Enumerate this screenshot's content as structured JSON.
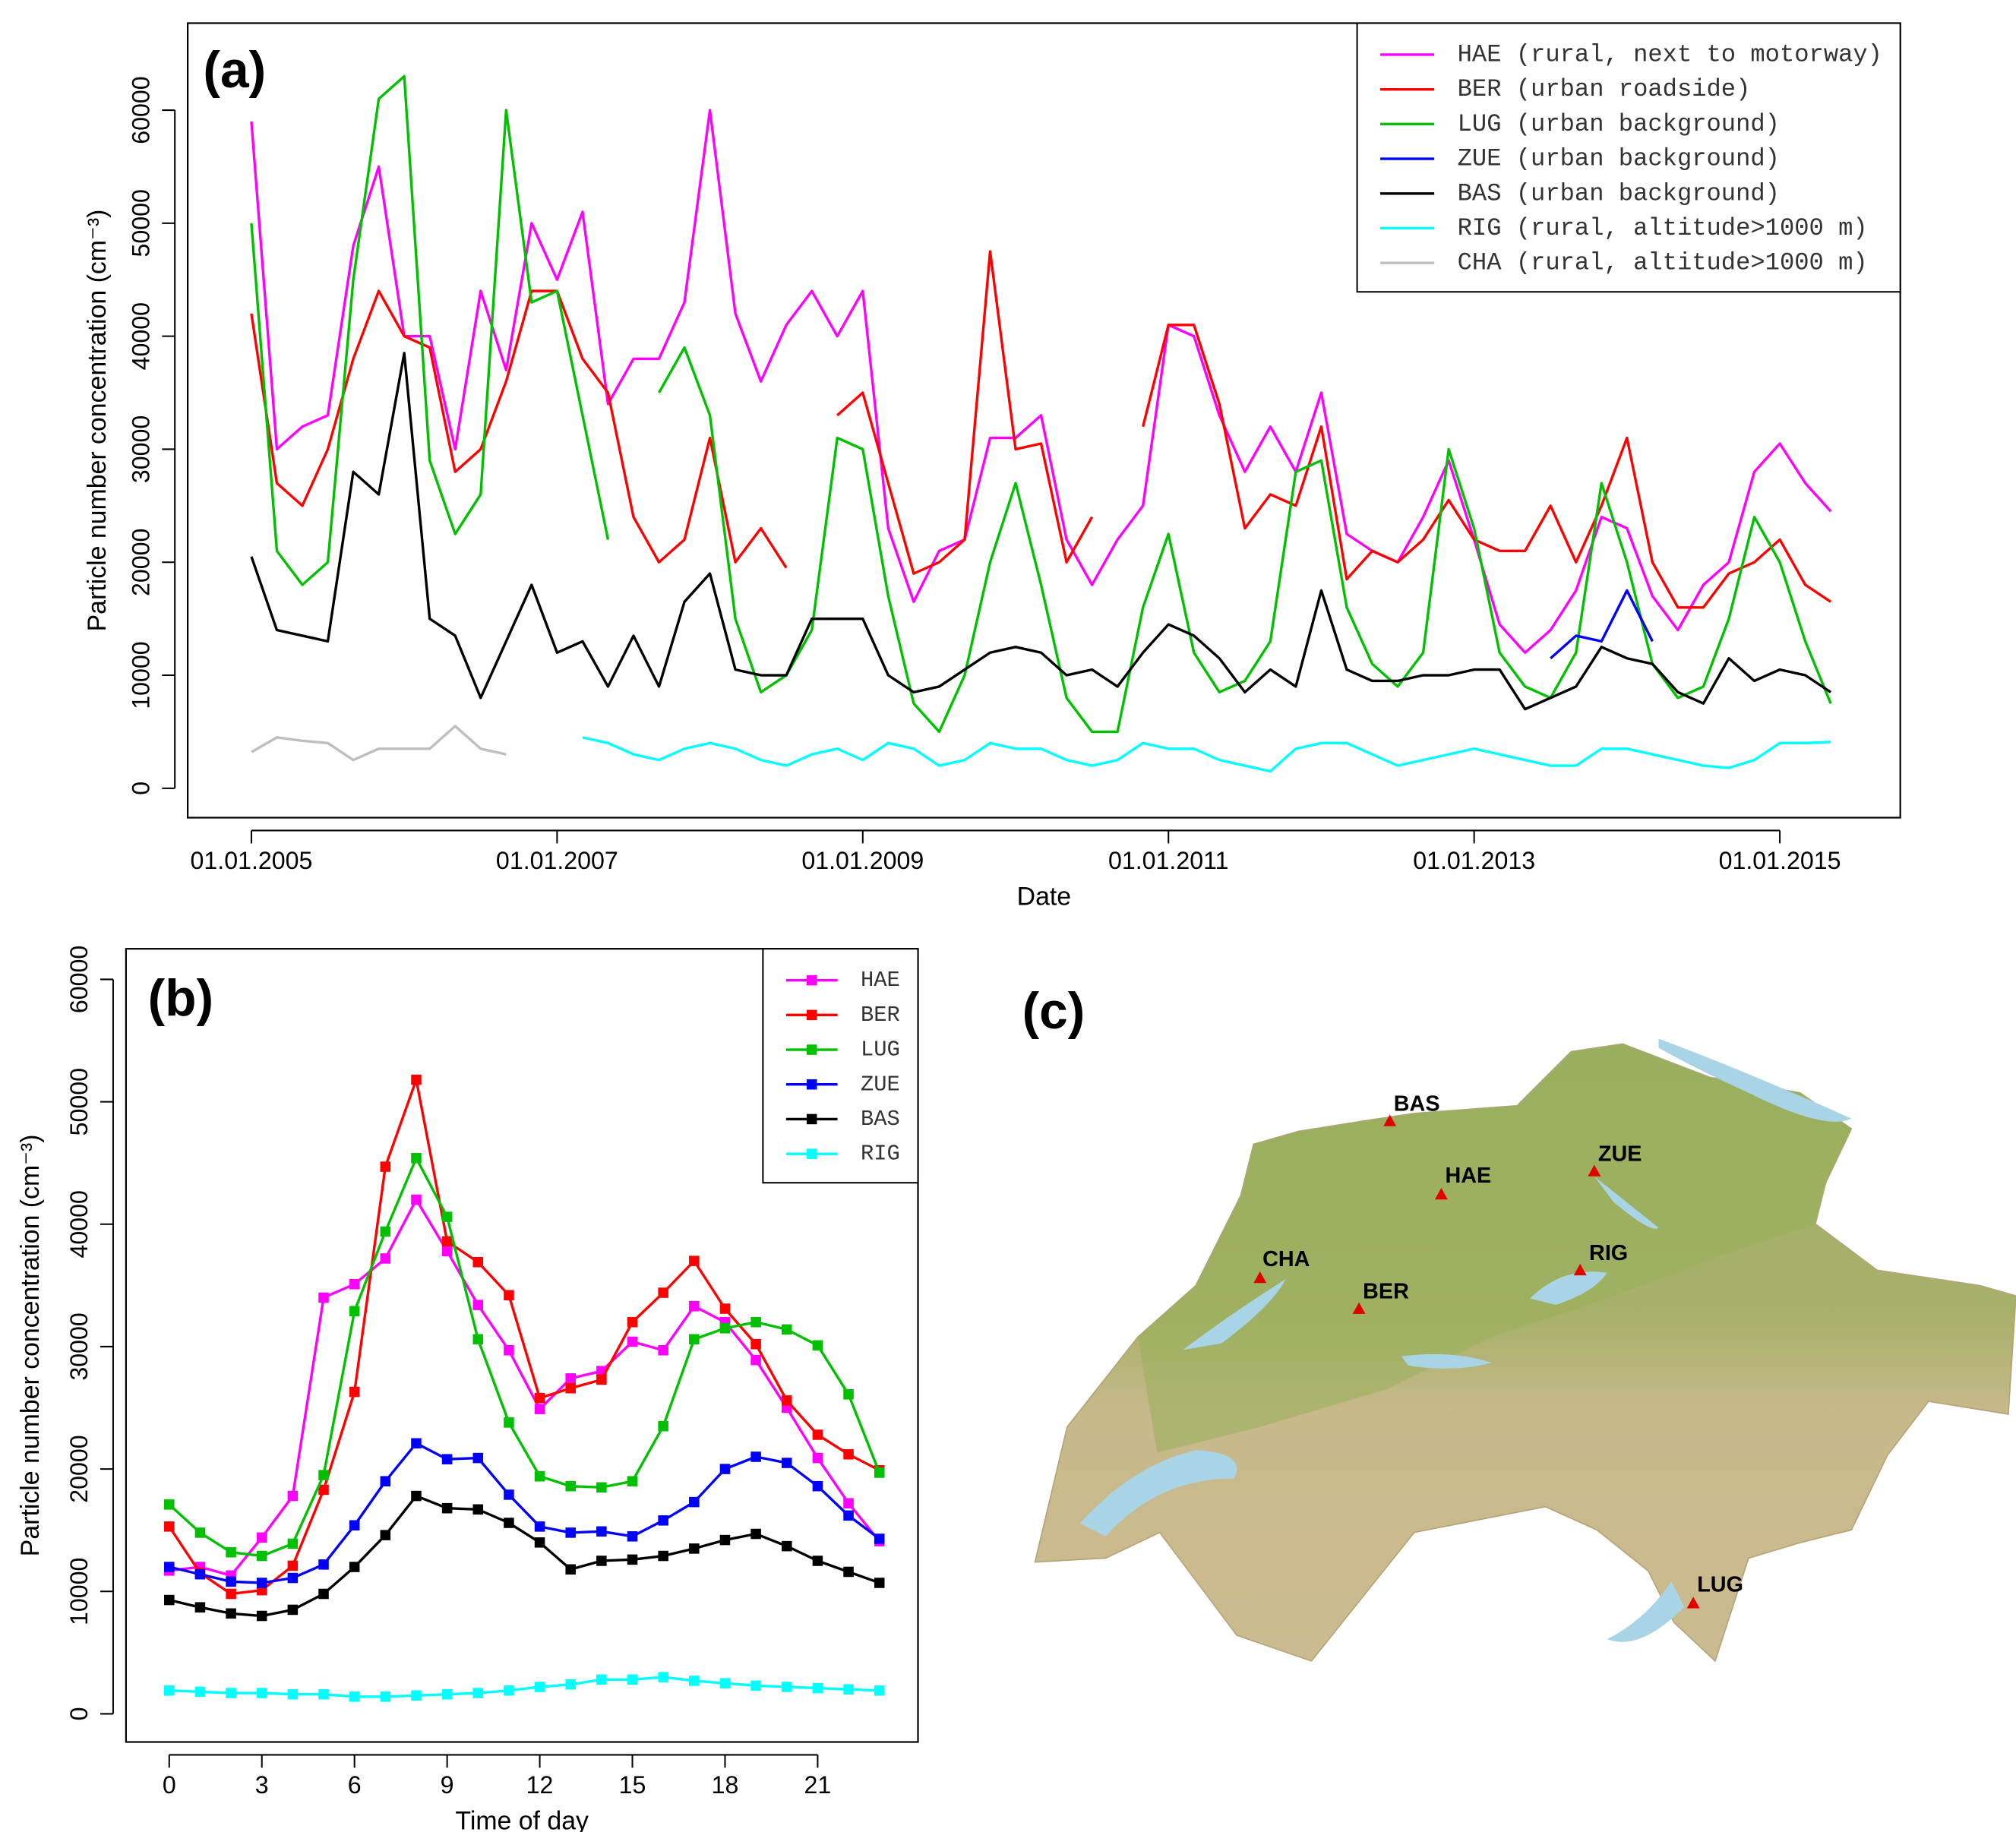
{
  "chart_data": [
    {
      "type": "line",
      "panel_label": "(a)",
      "x_label": "Date",
      "y_label": "Particle number concentration (cm⁻³)",
      "legend": "top-right",
      "x": [
        "01.01.2005",
        "01.03.2005",
        "01.05.2005",
        "01.07.2005",
        "01.09.2005",
        "01.11.2005",
        "01.01.2006",
        "01.03.2006",
        "01.05.2006",
        "01.07.2006",
        "01.09.2006",
        "01.11.2006",
        "01.01.2007",
        "01.03.2007",
        "01.05.2007",
        "01.07.2007",
        "01.09.2007",
        "01.11.2007",
        "01.01.2008",
        "01.03.2008",
        "01.05.2008",
        "01.07.2008",
        "01.09.2008",
        "01.11.2008",
        "01.01.2009",
        "01.03.2009",
        "01.05.2009",
        "01.07.2009",
        "01.09.2009",
        "01.11.2009",
        "01.01.2010",
        "01.03.2010",
        "01.05.2010",
        "01.07.2010",
        "01.09.2010",
        "01.11.2010",
        "01.01.2011",
        "01.03.2011",
        "01.05.2011",
        "01.07.2011",
        "01.09.2011",
        "01.11.2011",
        "01.01.2012",
        "01.03.2012",
        "01.05.2012",
        "01.07.2012",
        "01.09.2012",
        "01.11.2012",
        "01.01.2013",
        "01.03.2013",
        "01.05.2013",
        "01.07.2013",
        "01.09.2013",
        "01.11.2013",
        "01.01.2014",
        "01.03.2014",
        "01.05.2014",
        "01.07.2014",
        "01.09.2014",
        "01.11.2014",
        "01.01.2015",
        "01.03.2015",
        "01.05.2015"
      ],
      "xlim": [
        "01.08.2004",
        "15.10.2015"
      ],
      "xticks": [
        "01.01.2005",
        "01.01.2007",
        "01.01.2009",
        "01.01.2011",
        "01.01.2013",
        "01.01.2015"
      ],
      "ylim": [
        -2600,
        67700
      ],
      "yticks": [
        0,
        10000,
        20000,
        30000,
        40000,
        50000,
        60000
      ],
      "series": [
        {
          "name": "HAE (rural, next to motorway)",
          "color": "#ff00ff",
          "values": [
            59000,
            30000,
            32000,
            33000,
            48000,
            55000,
            40000,
            40000,
            30000,
            44000,
            37000,
            50000,
            45000,
            51000,
            34000,
            38000,
            38000,
            43000,
            60000,
            42000,
            36000,
            41000,
            44000,
            40000,
            44000,
            23000,
            16500,
            21000,
            22000,
            31000,
            31000,
            33000,
            22000,
            18000,
            22000,
            25000,
            41000,
            40000,
            33000,
            28000,
            32000,
            28000,
            35000,
            22500,
            21000,
            20000,
            24000,
            29000,
            22000,
            14500,
            12000,
            14000,
            17500,
            24000,
            23000,
            17000,
            14000,
            18000,
            20000,
            28000,
            30500,
            27000,
            24500
          ]
        },
        {
          "name": "BER (urban roadside)",
          "color": "#ff0000",
          "values": [
            42000,
            27000,
            25000,
            30000,
            38000,
            44000,
            40000,
            39000,
            28000,
            30000,
            36000,
            44000,
            44000,
            38000,
            35000,
            24000,
            20000,
            22000,
            31000,
            20000,
            23000,
            19500,
            null,
            33000,
            35000,
            27000,
            19000,
            20000,
            22000,
            47500,
            30000,
            30500,
            20000,
            24000,
            null,
            32000,
            41000,
            41000,
            34000,
            23000,
            26000,
            25000,
            32000,
            18500,
            21000,
            20000,
            22000,
            25500,
            22000,
            21000,
            21000,
            25000,
            20000,
            25000,
            31000,
            20000,
            16000,
            16000,
            19000,
            20000,
            22000,
            18000,
            16500
          ]
        },
        {
          "name": "LUG (urban background)",
          "color": "#00c000",
          "values": [
            50000,
            21000,
            18000,
            20000,
            45000,
            61000,
            63000,
            29000,
            22500,
            26000,
            60000,
            43000,
            44000,
            33000,
            22000,
            null,
            35000,
            39000,
            33000,
            15000,
            8500,
            10000,
            14000,
            31000,
            30000,
            17000,
            7500,
            5000,
            10000,
            20000,
            27000,
            18000,
            8000,
            5000,
            5000,
            16000,
            22500,
            12000,
            8500,
            9500,
            13000,
            28000,
            29000,
            16000,
            11000,
            9000,
            12000,
            30000,
            23000,
            12000,
            9000,
            8000,
            12000,
            27000,
            20000,
            11000,
            8000,
            9000,
            15000,
            24000,
            20000,
            13000,
            7500
          ]
        },
        {
          "name": "ZUE (urban background)",
          "color": "#0000ff",
          "values": [
            null,
            null,
            null,
            null,
            null,
            null,
            null,
            null,
            null,
            null,
            null,
            null,
            null,
            null,
            null,
            null,
            null,
            null,
            null,
            null,
            null,
            null,
            null,
            null,
            null,
            null,
            null,
            null,
            null,
            null,
            null,
            null,
            null,
            null,
            null,
            null,
            null,
            null,
            null,
            null,
            null,
            null,
            null,
            null,
            null,
            null,
            null,
            null,
            null,
            null,
            null,
            11500,
            13500,
            13000,
            17500,
            13000,
            null,
            null,
            null,
            null,
            null,
            null,
            null
          ]
        },
        {
          "name": "BAS (urban background)",
          "color": "#000000",
          "values": [
            20500,
            14000,
            13500,
            13000,
            28000,
            26000,
            38500,
            15000,
            13500,
            8000,
            13000,
            18000,
            12000,
            13000,
            9000,
            13500,
            9000,
            16500,
            19000,
            10500,
            10000,
            10000,
            15000,
            15000,
            15000,
            10000,
            8500,
            9000,
            10500,
            12000,
            12500,
            12000,
            10000,
            10500,
            9000,
            12000,
            14500,
            13500,
            11500,
            8500,
            10500,
            9000,
            17500,
            10500,
            9500,
            9500,
            10000,
            10000,
            10500,
            10500,
            7000,
            8000,
            9000,
            12500,
            11500,
            11000,
            8500,
            7500,
            11500,
            9500,
            10500,
            10000,
            8500
          ]
        },
        {
          "name": "RIG (rural, altitude>1000 m)",
          "color": "#00ffff",
          "values": [
            null,
            null,
            null,
            null,
            null,
            null,
            null,
            null,
            null,
            null,
            null,
            null,
            null,
            4500,
            4000,
            3000,
            2500,
            3500,
            4000,
            3500,
            2500,
            2000,
            3000,
            3500,
            2500,
            4000,
            3500,
            2000,
            2500,
            4000,
            3500,
            3500,
            2500,
            2000,
            2500,
            4000,
            3500,
            3500,
            2500,
            2000,
            1500,
            3500,
            4000,
            4000,
            3000,
            2000,
            2500,
            3000,
            3500,
            3000,
            2500,
            2000,
            2000,
            3500,
            3500,
            3000,
            2500,
            2000,
            1800,
            2500,
            4000,
            4000,
            4100
          ]
        },
        {
          "name": "CHA (rural, altitude>1000 m)",
          "color": "#bebebe",
          "values": [
            3200,
            4500,
            4200,
            4000,
            2500,
            3500,
            3500,
            3500,
            5500,
            3500,
            3000,
            null,
            null,
            null,
            null,
            null,
            null,
            null,
            null,
            null,
            null,
            null,
            null,
            null,
            null,
            null,
            null,
            null,
            null,
            null,
            null,
            null,
            null,
            null,
            null,
            null,
            null,
            null,
            null,
            null,
            null,
            null,
            null,
            null,
            null,
            null,
            null,
            null,
            null,
            null,
            null,
            null,
            null,
            null,
            null,
            null,
            null,
            null,
            null,
            null,
            null,
            null,
            null
          ]
        }
      ]
    },
    {
      "type": "line",
      "marker": "square",
      "panel_label": "(b)",
      "x_label": "Time of day",
      "y_label": "Particle number concentration (cm⁻³)",
      "legend": "top-right",
      "x": [
        0,
        1,
        2,
        3,
        4,
        5,
        6,
        7,
        8,
        9,
        10,
        11,
        12,
        13,
        14,
        15,
        16,
        17,
        18,
        19,
        20,
        21,
        22,
        23
      ],
      "xlim": [
        -1.4,
        24.25
      ],
      "xticks": [
        0,
        3,
        6,
        9,
        12,
        15,
        18,
        21
      ],
      "ylim": [
        -2300,
        62500
      ],
      "yticks": [
        0,
        10000,
        20000,
        30000,
        40000,
        50000,
        60000
      ],
      "series": [
        {
          "name": "HAE",
          "color": "#ff00ff",
          "values": [
            11700,
            12000,
            11300,
            14400,
            17800,
            34000,
            35100,
            37200,
            42000,
            37800,
            33400,
            29700,
            24900,
            27400,
            28000,
            30400,
            29700,
            33300,
            32000,
            28900,
            25000,
            20900,
            17200,
            14100
          ]
        },
        {
          "name": "BER",
          "color": "#ff0000",
          "values": [
            15300,
            11500,
            9800,
            10100,
            12100,
            18300,
            26300,
            44700,
            51800,
            38600,
            36900,
            34200,
            25800,
            26600,
            27300,
            32000,
            34400,
            37000,
            33100,
            30200,
            25600,
            22800,
            21200,
            19900
          ]
        },
        {
          "name": "LUG",
          "color": "#00c000",
          "values": [
            17100,
            14800,
            13200,
            12900,
            13900,
            19500,
            32900,
            39400,
            45400,
            40600,
            30600,
            23800,
            19400,
            18600,
            18500,
            19000,
            23500,
            30600,
            31500,
            32000,
            31400,
            30100,
            26100,
            19700
          ]
        },
        {
          "name": "ZUE",
          "color": "#0000ff",
          "values": [
            12000,
            11400,
            10800,
            10700,
            11100,
            12200,
            15400,
            19000,
            22100,
            20800,
            20900,
            17900,
            15300,
            14800,
            14900,
            14500,
            15800,
            17300,
            20000,
            21000,
            20500,
            18600,
            16200,
            14300
          ]
        },
        {
          "name": "BAS",
          "color": "#000000",
          "values": [
            9300,
            8700,
            8200,
            8000,
            8500,
            9800,
            12000,
            14600,
            17800,
            16800,
            16700,
            15600,
            14000,
            11800,
            12500,
            12600,
            12900,
            13500,
            14200,
            14700,
            13700,
            12500,
            11600,
            10700
          ]
        },
        {
          "name": "RIG",
          "color": "#00ffff",
          "values": [
            1900,
            1800,
            1700,
            1700,
            1600,
            1600,
            1400,
            1400,
            1500,
            1600,
            1700,
            1900,
            2200,
            2400,
            2800,
            2800,
            3000,
            2700,
            2500,
            2300,
            2200,
            2100,
            2000,
            1900
          ]
        }
      ]
    }
  ],
  "map": {
    "panel_label": "(c)",
    "stations": [
      "BAS",
      "HAE",
      "ZUE",
      "RIG",
      "CHA",
      "BER",
      "LUG"
    ]
  }
}
